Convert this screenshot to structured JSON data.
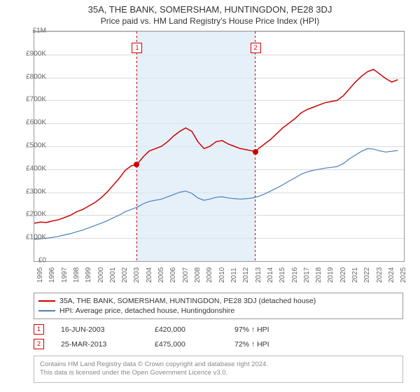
{
  "title": "35A, THE BANK, SOMERSHAM, HUNTINGDON, PE28 3DJ",
  "subtitle": "Price paid vs. HM Land Registry's House Price Index (HPI)",
  "chart": {
    "type": "line",
    "background_color": "#ffffff",
    "grid_color": "#d9d9d9",
    "border_color": "#999999",
    "ylim": [
      0,
      1000000
    ],
    "ytick_step": 100000,
    "y_tick_labels": [
      "£0",
      "£100K",
      "£200K",
      "£300K",
      "£400K",
      "£500K",
      "£600K",
      "£700K",
      "£800K",
      "£900K",
      "£1M"
    ],
    "xlim": [
      1995,
      2025.5
    ],
    "x_tick_labels": [
      "1995",
      "1996",
      "1997",
      "1998",
      "1999",
      "2000",
      "2001",
      "2002",
      "2003",
      "2004",
      "2005",
      "2006",
      "2007",
      "2008",
      "2009",
      "2010",
      "2011",
      "2012",
      "2013",
      "2014",
      "2015",
      "2016",
      "2017",
      "2018",
      "2019",
      "2020",
      "2021",
      "2022",
      "2023",
      "2024",
      "2025"
    ],
    "label_fontsize": 10,
    "title_fontsize": 13,
    "shaded_region": {
      "start_year": 2003.46,
      "end_year": 2013.23,
      "color": "#dbe9f6",
      "opacity": 0.7
    },
    "series": [
      {
        "name": "price_paid",
        "color": "#cc0000",
        "width": 1.5,
        "points": [
          [
            1995,
            165000
          ],
          [
            1995.5,
            170000
          ],
          [
            1996,
            168000
          ],
          [
            1996.5,
            175000
          ],
          [
            1997,
            180000
          ],
          [
            1997.5,
            190000
          ],
          [
            1998,
            200000
          ],
          [
            1998.5,
            215000
          ],
          [
            1999,
            225000
          ],
          [
            1999.5,
            240000
          ],
          [
            2000,
            255000
          ],
          [
            2000.5,
            275000
          ],
          [
            2001,
            300000
          ],
          [
            2001.5,
            330000
          ],
          [
            2002,
            360000
          ],
          [
            2002.5,
            395000
          ],
          [
            2003,
            415000
          ],
          [
            2003.46,
            420000
          ],
          [
            2004,
            455000
          ],
          [
            2004.5,
            480000
          ],
          [
            2005,
            490000
          ],
          [
            2005.5,
            500000
          ],
          [
            2006,
            520000
          ],
          [
            2006.5,
            545000
          ],
          [
            2007,
            565000
          ],
          [
            2007.5,
            580000
          ],
          [
            2008,
            565000
          ],
          [
            2008.5,
            520000
          ],
          [
            2009,
            490000
          ],
          [
            2009.5,
            500000
          ],
          [
            2010,
            520000
          ],
          [
            2010.5,
            525000
          ],
          [
            2011,
            510000
          ],
          [
            2011.5,
            500000
          ],
          [
            2012,
            490000
          ],
          [
            2012.5,
            485000
          ],
          [
            2013,
            480000
          ],
          [
            2013.23,
            475000
          ],
          [
            2013.5,
            490000
          ],
          [
            2014,
            510000
          ],
          [
            2014.5,
            530000
          ],
          [
            2015,
            555000
          ],
          [
            2015.5,
            580000
          ],
          [
            2016,
            600000
          ],
          [
            2016.5,
            620000
          ],
          [
            2017,
            645000
          ],
          [
            2017.5,
            660000
          ],
          [
            2018,
            670000
          ],
          [
            2018.5,
            680000
          ],
          [
            2019,
            690000
          ],
          [
            2019.5,
            695000
          ],
          [
            2020,
            700000
          ],
          [
            2020.5,
            720000
          ],
          [
            2021,
            750000
          ],
          [
            2021.5,
            780000
          ],
          [
            2022,
            805000
          ],
          [
            2022.5,
            825000
          ],
          [
            2023,
            835000
          ],
          [
            2023.5,
            815000
          ],
          [
            2024,
            795000
          ],
          [
            2024.5,
            780000
          ],
          [
            2025,
            790000
          ]
        ]
      },
      {
        "name": "hpi",
        "color": "#4a7ebb",
        "width": 1.2,
        "points": [
          [
            1995,
            95000
          ],
          [
            1995.5,
            97000
          ],
          [
            1996,
            100000
          ],
          [
            1996.5,
            103000
          ],
          [
            1997,
            108000
          ],
          [
            1997.5,
            114000
          ],
          [
            1998,
            120000
          ],
          [
            1998.5,
            128000
          ],
          [
            1999,
            135000
          ],
          [
            1999.5,
            145000
          ],
          [
            2000,
            155000
          ],
          [
            2000.5,
            165000
          ],
          [
            2001,
            175000
          ],
          [
            2001.5,
            188000
          ],
          [
            2002,
            200000
          ],
          [
            2002.5,
            215000
          ],
          [
            2003,
            225000
          ],
          [
            2003.5,
            235000
          ],
          [
            2004,
            250000
          ],
          [
            2004.5,
            260000
          ],
          [
            2005,
            265000
          ],
          [
            2005.5,
            270000
          ],
          [
            2006,
            280000
          ],
          [
            2006.5,
            290000
          ],
          [
            2007,
            300000
          ],
          [
            2007.5,
            305000
          ],
          [
            2008,
            295000
          ],
          [
            2008.5,
            275000
          ],
          [
            2009,
            265000
          ],
          [
            2009.5,
            270000
          ],
          [
            2010,
            278000
          ],
          [
            2010.5,
            280000
          ],
          [
            2011,
            275000
          ],
          [
            2011.5,
            272000
          ],
          [
            2012,
            270000
          ],
          [
            2012.5,
            272000
          ],
          [
            2013,
            275000
          ],
          [
            2013.5,
            282000
          ],
          [
            2014,
            292000
          ],
          [
            2014.5,
            305000
          ],
          [
            2015,
            318000
          ],
          [
            2015.5,
            332000
          ],
          [
            2016,
            348000
          ],
          [
            2016.5,
            362000
          ],
          [
            2017,
            378000
          ],
          [
            2017.5,
            388000
          ],
          [
            2018,
            395000
          ],
          [
            2018.5,
            400000
          ],
          [
            2019,
            405000
          ],
          [
            2019.5,
            408000
          ],
          [
            2020,
            412000
          ],
          [
            2020.5,
            425000
          ],
          [
            2021,
            445000
          ],
          [
            2021.5,
            462000
          ],
          [
            2022,
            478000
          ],
          [
            2022.5,
            490000
          ],
          [
            2023,
            488000
          ],
          [
            2023.5,
            480000
          ],
          [
            2024,
            475000
          ],
          [
            2024.5,
            478000
          ],
          [
            2025,
            482000
          ]
        ]
      }
    ],
    "sale_markers": [
      {
        "n": "1",
        "year": 2003.46,
        "price": 420000,
        "dot_color": "#cc0000",
        "marker_line_color": "#cc0000"
      },
      {
        "n": "2",
        "year": 2013.23,
        "price": 475000,
        "dot_color": "#cc0000",
        "marker_line_color": "#cc0000"
      }
    ]
  },
  "legend": {
    "items": [
      {
        "color": "#cc0000",
        "label": "35A, THE BANK, SOMERSHAM, HUNTINGDON, PE28 3DJ (detached house)"
      },
      {
        "color": "#4a7ebb",
        "label": "HPI: Average price, detached house, Huntingdonshire"
      }
    ]
  },
  "sales": [
    {
      "n": "1",
      "date": "16-JUN-2003",
      "price": "£420,000",
      "hpi": "97% ↑ HPI"
    },
    {
      "n": "2",
      "date": "25-MAR-2013",
      "price": "£475,000",
      "hpi": "72% ↑ HPI"
    }
  ],
  "footer": {
    "line1": "Contains HM Land Registry data © Crown copyright and database right 2024.",
    "line2": "This data is licensed under the Open Government Licence v3.0."
  }
}
